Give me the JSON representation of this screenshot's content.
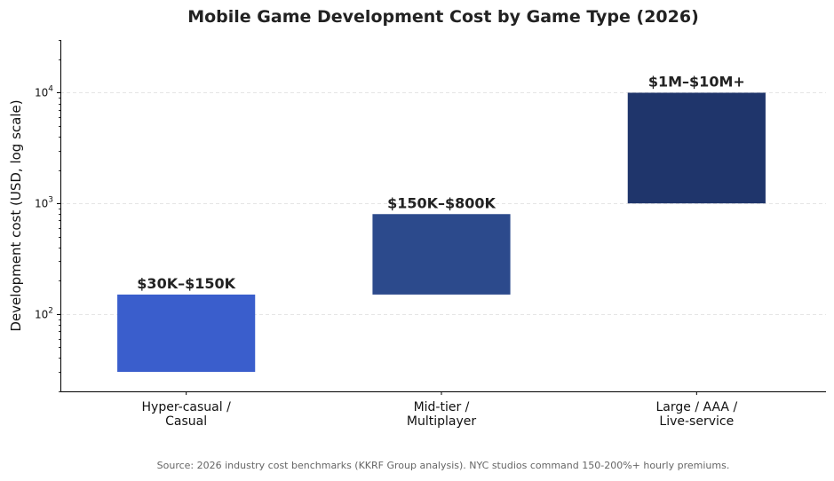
{
  "chart_data": {
    "type": "bar",
    "title": "Mobile Game Development Cost by Game Type (2026)",
    "xlabel": "",
    "ylabel": "Development cost (USD, log scale)",
    "yscale": "log",
    "ylim": [
      20,
      30000
    ],
    "yticks": [
      {
        "value": 100,
        "base": "10",
        "exp": "2"
      },
      {
        "value": 1000,
        "base": "10",
        "exp": "3"
      },
      {
        "value": 10000,
        "base": "10",
        "exp": "4"
      }
    ],
    "grid": "y-dashed",
    "categories": [
      [
        "Hyper-casual /",
        "Casual"
      ],
      [
        "Mid-tier /",
        "Multiplayer"
      ],
      [
        "Large / AAA /",
        "Live-service"
      ]
    ],
    "ranges": [
      {
        "low": 30,
        "high": 150,
        "label": "$30K–$150K",
        "color": "#3a5ecc"
      },
      {
        "low": 150,
        "high": 800,
        "label": "$150K–$800K",
        "color": "#2c4a8c"
      },
      {
        "low": 1000,
        "high": 10000,
        "label": "$1M–$10M+",
        "color": "#1f356b"
      }
    ],
    "source": "Source: 2026 industry cost benchmarks (KKRF Group analysis). NYC studios command 150-200%+ hourly premiums."
  }
}
